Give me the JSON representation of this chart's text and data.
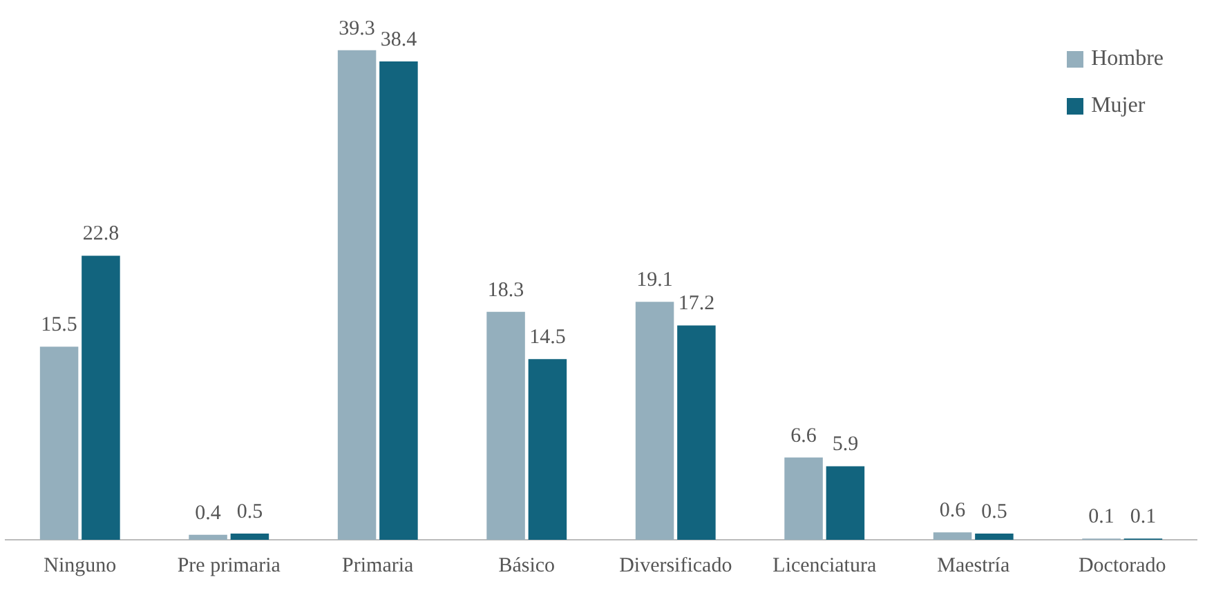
{
  "chart_data": {
    "type": "bar",
    "categories": [
      "Ninguno",
      "Pre primaria",
      "Primaria",
      "Básico",
      "Diversificado",
      "Licenciatura",
      "Maestría",
      "Doctorado"
    ],
    "series": [
      {
        "name": "Hombre",
        "color": "#94afbd",
        "values": [
          15.5,
          0.4,
          39.3,
          18.3,
          19.1,
          6.6,
          0.6,
          0.1
        ]
      },
      {
        "name": "Mujer",
        "color": "#12647e",
        "values": [
          22.8,
          0.5,
          38.4,
          14.5,
          17.2,
          5.9,
          0.5,
          0.1
        ]
      }
    ],
    "data_labels": true,
    "legend": "top right",
    "grid": false,
    "tick_labels": "x"
  }
}
